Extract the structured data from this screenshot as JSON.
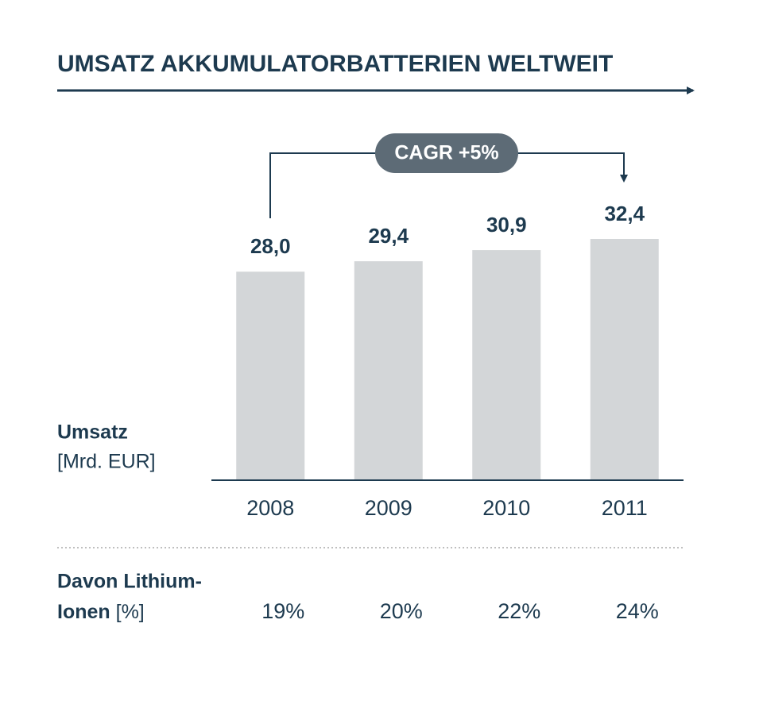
{
  "chart_data": {
    "type": "bar",
    "title": "UMSATZ AKKUMULATORBATTERIEN WELTWEIT",
    "y_label": "Umsatz",
    "y_unit": "[Mrd. EUR]",
    "annotation": "CAGR +5%",
    "categories": [
      "2008",
      "2009",
      "2010",
      "2011"
    ],
    "values": [
      28.0,
      29.4,
      30.9,
      32.4
    ],
    "value_labels": [
      "28,0",
      "29,4",
      "30,9",
      "32,4"
    ],
    "color": "#d3d6d8",
    "share": {
      "label": "Davon Lithium-",
      "label2": "Ionen",
      "unit": "[%]",
      "values": [
        19,
        20,
        22,
        24
      ],
      "value_labels": [
        "19%",
        "20%",
        "22%",
        "24%"
      ]
    }
  }
}
